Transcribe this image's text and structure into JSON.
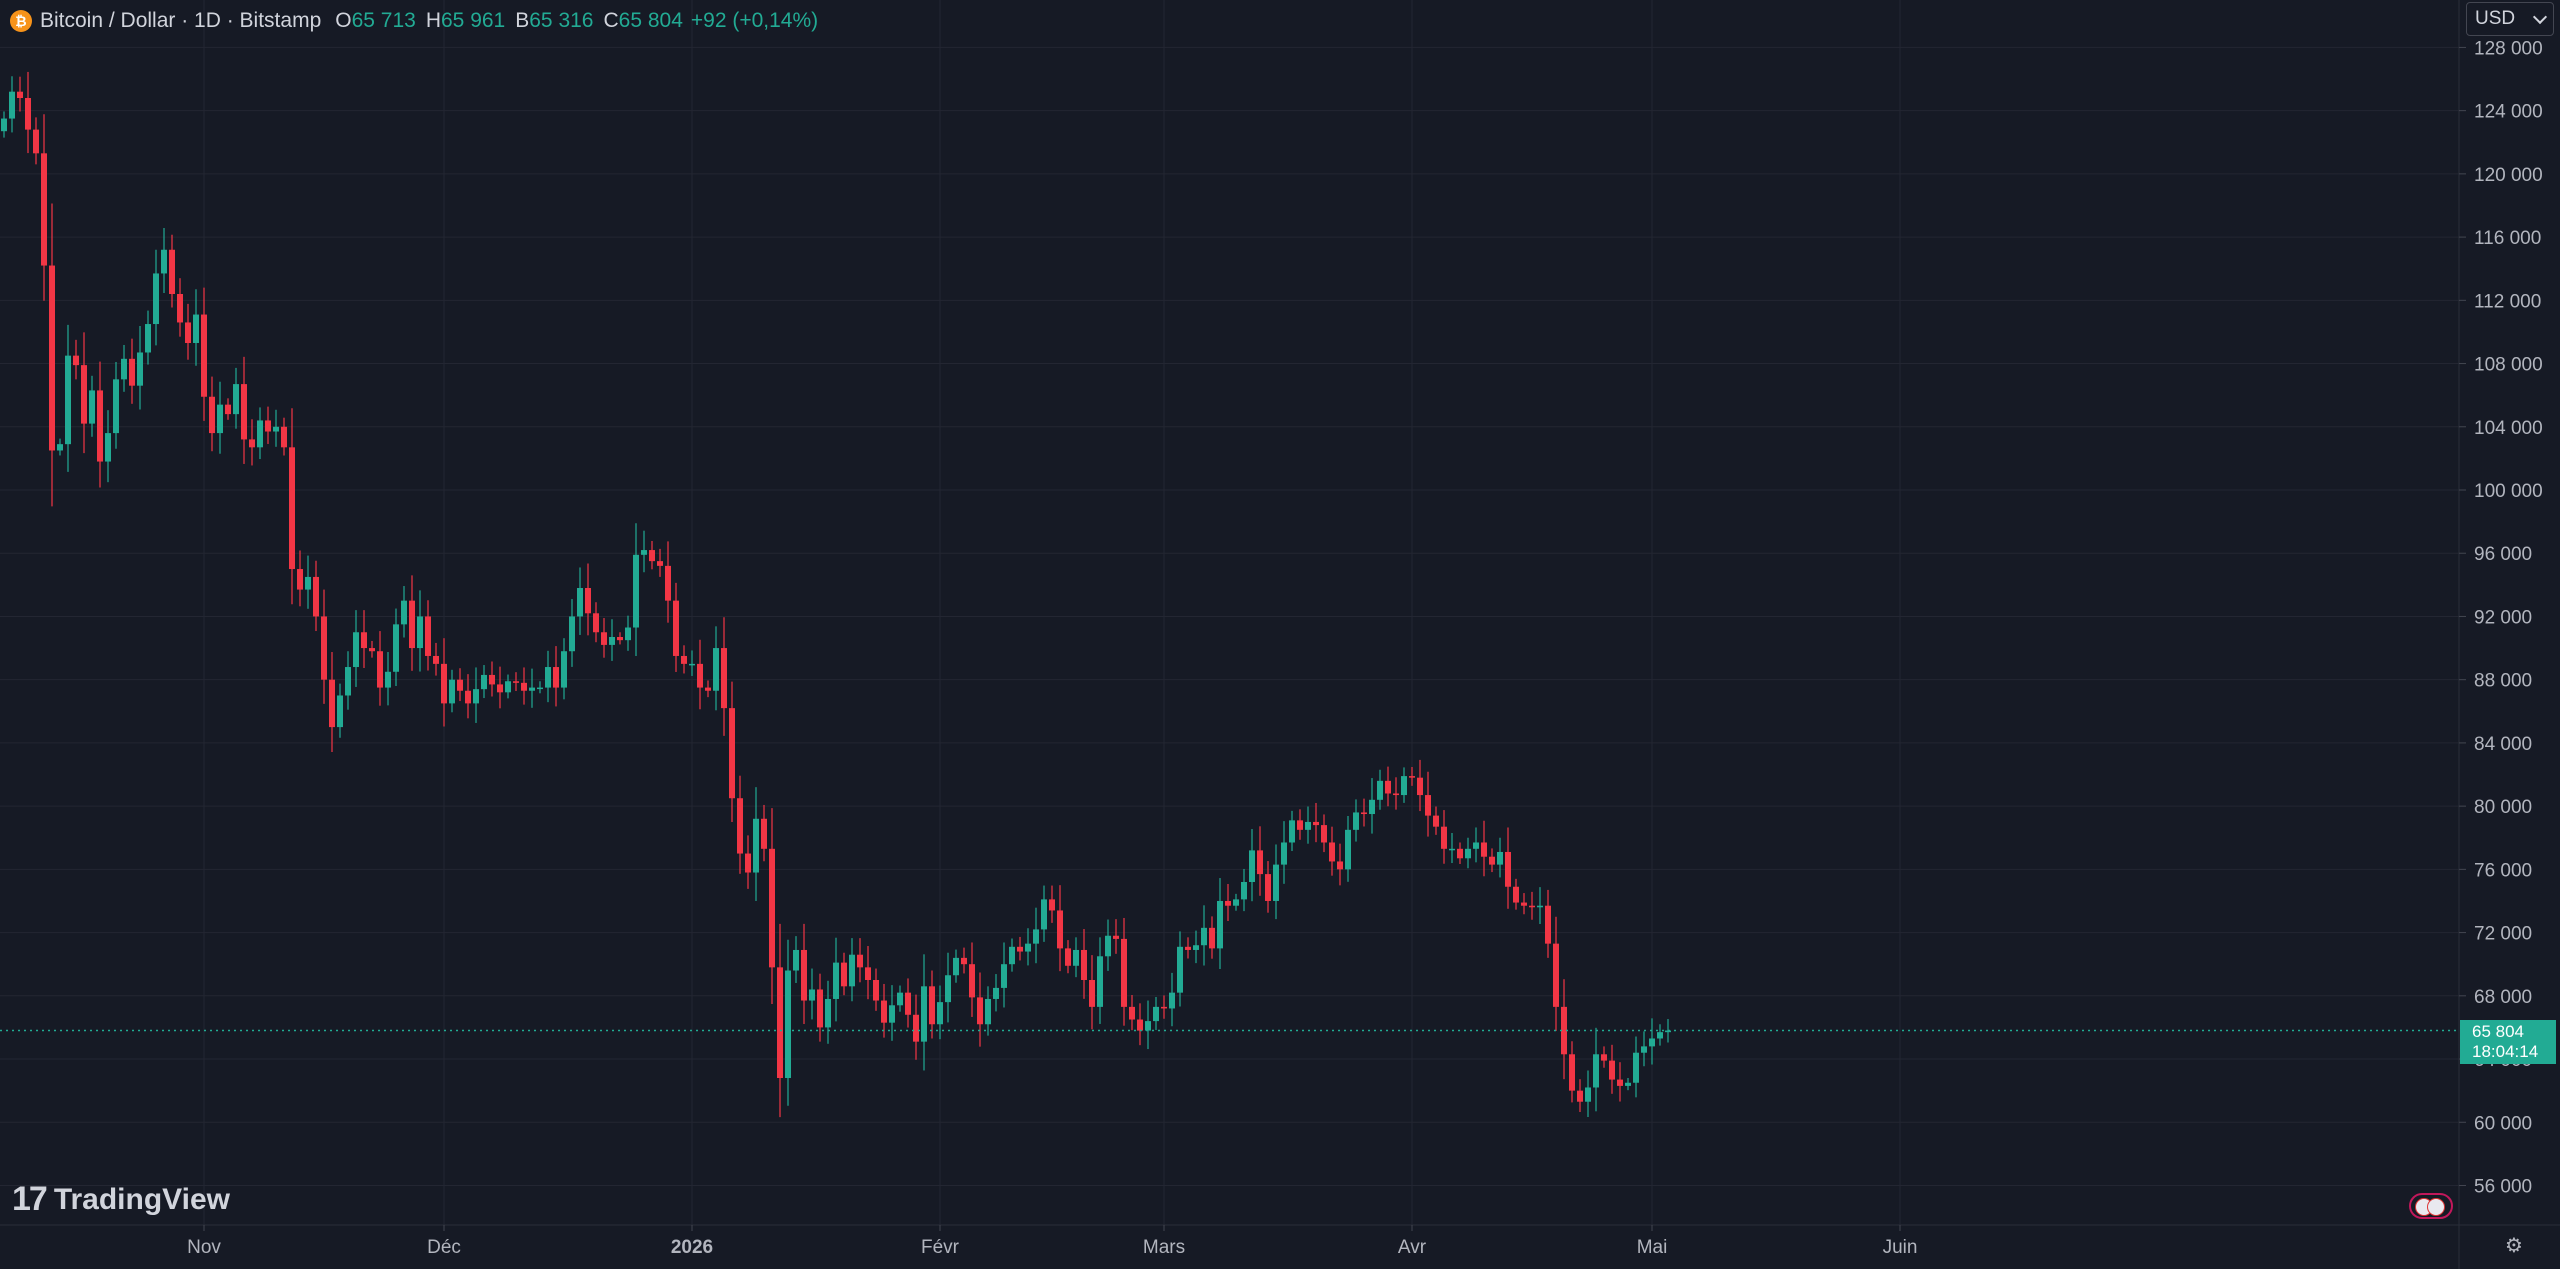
{
  "header": {
    "title": "Bitcoin / Dollar · 1D · Bitstamp",
    "coin_glyph": "₿",
    "ohlc": [
      {
        "k": "O",
        "v": "65 713"
      },
      {
        "k": "H",
        "v": "65 961"
      },
      {
        "k": "B",
        "v": "65 316"
      },
      {
        "k": "C",
        "v": "65 804"
      }
    ],
    "change": "+92 (+0,14%)"
  },
  "currency_selector": {
    "value": "USD"
  },
  "last_price": {
    "value": "65 804",
    "countdown": "18:04:14"
  },
  "branding": {
    "logo_mark": "17",
    "logo_text": "TradingView"
  },
  "colors": {
    "background": "#161a25",
    "up": "#22ab94",
    "down": "#f23645",
    "grid": "#232632",
    "axis_text": "#b2b5be"
  },
  "chart_data": {
    "type": "candlestick",
    "ylim": [
      53500,
      131000
    ],
    "y_ticks": [
      "128 000",
      "124 000",
      "120 000",
      "116 000",
      "112 000",
      "108 000",
      "104 000",
      "100 000",
      "96 000",
      "92 000",
      "88 000",
      "84 000",
      "80 000",
      "76 000",
      "72 000",
      "68 000",
      "64 000",
      "60 000",
      "56 000"
    ],
    "y_tick_values": [
      128000,
      124000,
      120000,
      116000,
      112000,
      108000,
      104000,
      100000,
      96000,
      92000,
      88000,
      84000,
      80000,
      76000,
      72000,
      68000,
      64000,
      60000,
      56000
    ],
    "x_ticks": [
      {
        "label": "Nov",
        "index": 25,
        "bold": false
      },
      {
        "label": "Déc",
        "index": 55,
        "bold": false
      },
      {
        "label": "2026",
        "index": 86,
        "bold": true
      },
      {
        "label": "Févr",
        "index": 117,
        "bold": false
      },
      {
        "label": "Mars",
        "index": 145,
        "bold": false
      },
      {
        "label": "Avr",
        "index": 176,
        "bold": false
      },
      {
        "label": "Mai",
        "index": 206,
        "bold": false
      },
      {
        "label": "Juin",
        "index": 237,
        "bold": false
      }
    ],
    "last_value": 65804,
    "closes": [
      123500,
      125200,
      124800,
      122800,
      121300,
      114200,
      102500,
      102900,
      108500,
      107900,
      104200,
      106300,
      101800,
      103600,
      107000,
      108300,
      106600,
      108700,
      110500,
      113700,
      115200,
      112400,
      110600,
      109300,
      111100,
      105900,
      103600,
      105400,
      104800,
      106700,
      103200,
      102700,
      104400,
      103700,
      104000,
      102700,
      95000,
      93700,
      94500,
      92000,
      88000,
      85000,
      87000,
      88800,
      91000,
      90000,
      89800,
      87500,
      88500,
      91500,
      93000,
      90000,
      92000,
      89500,
      89000,
      86500,
      88000,
      87300,
      86500,
      87400,
      88300,
      87700,
      87200,
      87900,
      87800,
      87300,
      87500,
      87500,
      88800,
      87500,
      89800,
      92000,
      93800,
      92200,
      91000,
      90200,
      90700,
      90500,
      91300,
      95900,
      96200,
      95500,
      95200,
      93000,
      89500,
      89000,
      89000,
      87500,
      87300,
      90000,
      86200,
      80500,
      77000,
      75800,
      79200,
      77300,
      69800,
      62800,
      69600,
      70900,
      67700,
      68400,
      66000,
      67800,
      70100,
      68600,
      70600,
      69800,
      69000,
      67700,
      66300,
      67400,
      68200,
      66800,
      65100,
      68600,
      66200,
      67600,
      69300,
      70400,
      70000,
      67900,
      66200,
      67800,
      68500,
      70000,
      71100,
      70800,
      71300,
      72200,
      74100,
      73400,
      71000,
      69900,
      70900,
      69000,
      67300,
      70500,
      71800,
      71600,
      67300,
      66500,
      65800,
      66400,
      67300,
      67200,
      68200,
      71100,
      70900,
      71200,
      72300,
      71000,
      74000,
      73700,
      74100,
      75200,
      77200,
      75700,
      74000,
      76300,
      77700,
      79100,
      78500,
      79000,
      78800,
      77700,
      76500,
      76000,
      78500,
      79600,
      79500,
      80400,
      81600,
      80800,
      80700,
      81900,
      81800,
      80700,
      79400,
      78700,
      77300,
      77300,
      76700,
      77300,
      77700,
      76800,
      76300,
      77100,
      74900,
      73900,
      73700,
      73600,
      73700,
      71300,
      67300,
      64300,
      62000,
      61300,
      62200,
      64300,
      63900,
      62700,
      62300,
      62500,
      64400,
      64800,
      65300,
      65700,
      65804
    ],
    "series": [
      {
        "name": "",
        "values": "closes"
      }
    ]
  }
}
